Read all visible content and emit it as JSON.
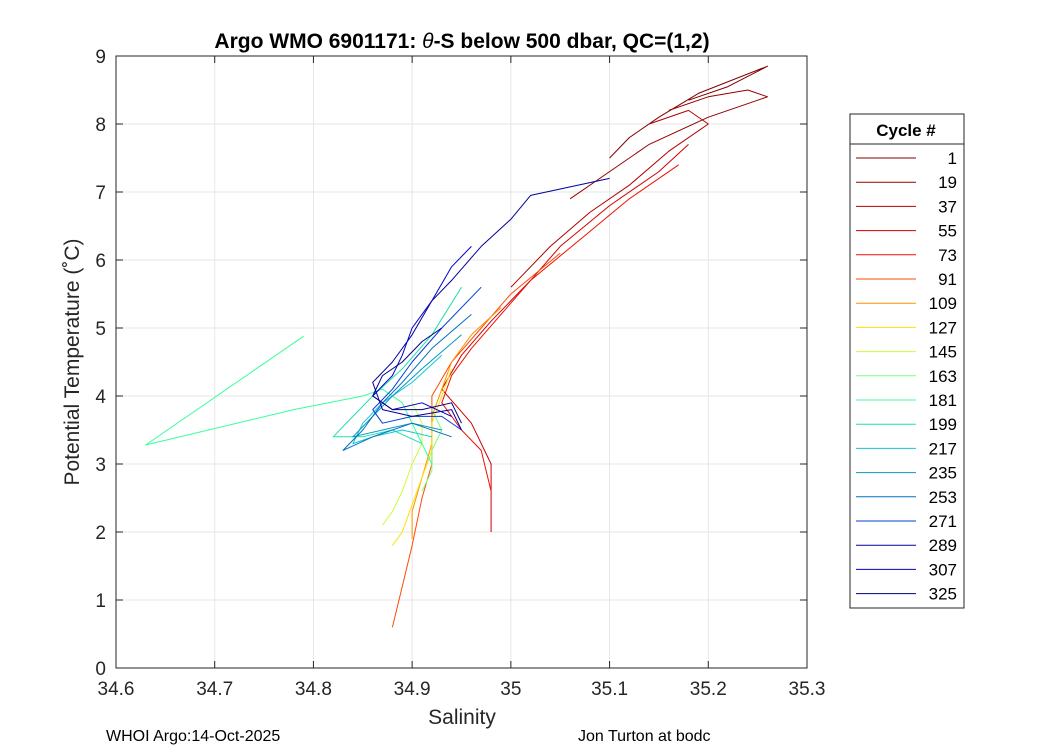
{
  "chart_data": {
    "type": "line",
    "title_prefix": "Argo WMO 6901171: ",
    "title_symbol": "θ",
    "title_suffix": "-S below 500 dbar,  QC=(1,2)",
    "xlabel": "Salinity",
    "ylabel": "Potential Temperature (˚C)",
    "xlim": [
      34.6,
      35.3
    ],
    "ylim": [
      0,
      9
    ],
    "x_ticks": [
      "34.6",
      "34.7",
      "34.8",
      "34.9",
      "35",
      "35.1",
      "35.2",
      "35.3"
    ],
    "y_ticks": [
      "0",
      "1",
      "2",
      "3",
      "4",
      "5",
      "6",
      "7",
      "8",
      "9"
    ],
    "grid": true,
    "legend_title": "Cycle #",
    "legend_position": "right-outside",
    "legend": [
      {
        "label": "1",
        "color": "#800000"
      },
      {
        "label": "19",
        "color": "#960000"
      },
      {
        "label": "37",
        "color": "#b00000"
      },
      {
        "label": "55",
        "color": "#d00000"
      },
      {
        "label": "73",
        "color": "#f01000"
      },
      {
        "label": "91",
        "color": "#ff4a00"
      },
      {
        "label": "109",
        "color": "#ff9200"
      },
      {
        "label": "127",
        "color": "#ffe000"
      },
      {
        "label": "145",
        "color": "#c8ff30"
      },
      {
        "label": "163",
        "color": "#7aff7a"
      },
      {
        "label": "181",
        "color": "#38ff9a"
      },
      {
        "label": "199",
        "color": "#20e0b0"
      },
      {
        "label": "217",
        "color": "#10c8d8"
      },
      {
        "label": "235",
        "color": "#0898c0"
      },
      {
        "label": "253",
        "color": "#0070c0"
      },
      {
        "label": "271",
        "color": "#0040d8"
      },
      {
        "label": "289",
        "color": "#0000a0"
      },
      {
        "label": "307",
        "color": "#0000c8"
      },
      {
        "label": "325",
        "color": "#000080"
      }
    ],
    "series": [
      {
        "name": "1",
        "color": "#800000",
        "points": [
          [
            35.18,
            8.35
          ],
          [
            35.22,
            8.55
          ],
          [
            35.26,
            8.85
          ],
          [
            35.19,
            8.45
          ],
          [
            35.15,
            8.1
          ],
          [
            35.12,
            7.8
          ],
          [
            35.1,
            7.5
          ]
        ]
      },
      {
        "name": "19",
        "color": "#960000",
        "points": [
          [
            35.16,
            8.2
          ],
          [
            35.2,
            8.4
          ],
          [
            35.24,
            8.5
          ],
          [
            35.26,
            8.4
          ],
          [
            35.2,
            8.1
          ],
          [
            35.14,
            7.7
          ],
          [
            35.1,
            7.3
          ],
          [
            35.06,
            6.9
          ]
        ]
      },
      {
        "name": "37",
        "color": "#b00000",
        "points": [
          [
            35.14,
            8.0
          ],
          [
            35.18,
            8.2
          ],
          [
            35.2,
            8.0
          ],
          [
            35.16,
            7.6
          ],
          [
            35.12,
            7.1
          ],
          [
            35.08,
            6.7
          ],
          [
            35.04,
            6.2
          ],
          [
            35.0,
            5.6
          ]
        ]
      },
      {
        "name": "55",
        "color": "#d00000",
        "points": [
          [
            35.18,
            7.7
          ],
          [
            35.15,
            7.3
          ],
          [
            35.1,
            6.8
          ],
          [
            35.05,
            6.2
          ],
          [
            35.02,
            5.7
          ],
          [
            34.98,
            5.1
          ],
          [
            34.95,
            4.6
          ],
          [
            34.93,
            4.1
          ],
          [
            34.96,
            3.6
          ],
          [
            34.98,
            3.0
          ],
          [
            34.98,
            2.0
          ]
        ]
      },
      {
        "name": "73",
        "color": "#f01000",
        "points": [
          [
            35.17,
            7.4
          ],
          [
            35.12,
            6.9
          ],
          [
            35.07,
            6.3
          ],
          [
            35.02,
            5.7
          ],
          [
            34.99,
            5.2
          ],
          [
            34.96,
            4.7
          ],
          [
            34.94,
            4.3
          ],
          [
            34.93,
            3.9
          ],
          [
            34.95,
            3.5
          ],
          [
            34.97,
            3.2
          ],
          [
            34.98,
            2.6
          ]
        ]
      },
      {
        "name": "91",
        "color": "#ff4a00",
        "points": [
          [
            35.05,
            6.1
          ],
          [
            35.0,
            5.5
          ],
          [
            34.97,
            5.0
          ],
          [
            34.94,
            4.5
          ],
          [
            34.92,
            4.0
          ],
          [
            34.92,
            3.5
          ],
          [
            34.92,
            3.0
          ],
          [
            34.91,
            2.5
          ],
          [
            34.9,
            1.8
          ],
          [
            34.89,
            1.2
          ],
          [
            34.88,
            0.6
          ]
        ]
      },
      {
        "name": "109",
        "color": "#ff9200",
        "points": [
          [
            34.99,
            5.3
          ],
          [
            34.96,
            4.9
          ],
          [
            34.94,
            4.5
          ],
          [
            34.93,
            4.1
          ],
          [
            34.92,
            3.7
          ],
          [
            34.92,
            3.3
          ],
          [
            34.91,
            2.8
          ],
          [
            34.9,
            2.3
          ],
          [
            34.9,
            1.9
          ]
        ]
      },
      {
        "name": "127",
        "color": "#ffe000",
        "points": [
          [
            34.94,
            4.4
          ],
          [
            34.93,
            4.0
          ],
          [
            34.92,
            3.6
          ],
          [
            34.92,
            3.2
          ],
          [
            34.91,
            2.8
          ],
          [
            34.9,
            2.4
          ],
          [
            34.89,
            2.0
          ],
          [
            34.88,
            1.8
          ]
        ]
      },
      {
        "name": "145",
        "color": "#c8ff30",
        "points": [
          [
            34.9,
            3.9
          ],
          [
            34.91,
            3.6
          ],
          [
            34.91,
            3.3
          ],
          [
            34.9,
            3.0
          ],
          [
            34.89,
            2.6
          ],
          [
            34.88,
            2.3
          ],
          [
            34.87,
            2.1
          ]
        ]
      },
      {
        "name": "163",
        "color": "#7aff7a",
        "points": [
          [
            34.92,
            3.8
          ],
          [
            34.93,
            3.5
          ],
          [
            34.92,
            3.2
          ],
          [
            34.92,
            2.9
          ],
          [
            34.91,
            2.6
          ]
        ]
      },
      {
        "name": "181",
        "color": "#38ff9a",
        "points": [
          [
            34.79,
            4.88
          ],
          [
            34.63,
            3.28
          ],
          [
            34.78,
            3.8
          ],
          [
            34.85,
            4.0
          ],
          [
            34.87,
            4.1
          ],
          [
            34.89,
            3.9
          ],
          [
            34.9,
            3.6
          ],
          [
            34.91,
            3.3
          ],
          [
            34.92,
            3.0
          ]
        ]
      },
      {
        "name": "199",
        "color": "#20e0b0",
        "points": [
          [
            34.95,
            5.6
          ],
          [
            34.92,
            4.9
          ],
          [
            34.89,
            4.4
          ],
          [
            34.86,
            4.0
          ],
          [
            34.84,
            3.7
          ],
          [
            34.82,
            3.4
          ],
          [
            34.85,
            3.4
          ],
          [
            34.88,
            3.5
          ],
          [
            34.91,
            3.3
          ]
        ]
      },
      {
        "name": "217",
        "color": "#10c8d8",
        "points": [
          [
            34.93,
            4.6
          ],
          [
            34.9,
            4.2
          ],
          [
            34.87,
            3.9
          ],
          [
            34.85,
            3.6
          ],
          [
            34.84,
            3.3
          ],
          [
            34.86,
            3.4
          ],
          [
            34.89,
            3.5
          ],
          [
            34.92,
            3.4
          ]
        ]
      },
      {
        "name": "235",
        "color": "#0898c0",
        "points": [
          [
            34.95,
            4.9
          ],
          [
            34.91,
            4.4
          ],
          [
            34.88,
            4.0
          ],
          [
            34.86,
            3.7
          ],
          [
            34.84,
            3.4
          ],
          [
            34.87,
            3.5
          ],
          [
            34.9,
            3.6
          ],
          [
            34.93,
            3.5
          ]
        ]
      },
      {
        "name": "253",
        "color": "#0070c0",
        "points": [
          [
            34.96,
            5.2
          ],
          [
            34.92,
            4.7
          ],
          [
            34.89,
            4.2
          ],
          [
            34.87,
            3.9
          ],
          [
            34.85,
            3.5
          ],
          [
            34.83,
            3.2
          ],
          [
            34.86,
            3.4
          ],
          [
            34.9,
            3.6
          ],
          [
            34.94,
            3.4
          ]
        ]
      },
      {
        "name": "271",
        "color": "#0040d8",
        "points": [
          [
            34.97,
            5.6
          ],
          [
            34.93,
            5.0
          ],
          [
            34.9,
            4.5
          ],
          [
            34.88,
            4.1
          ],
          [
            34.86,
            3.8
          ],
          [
            34.87,
            3.6
          ],
          [
            34.9,
            3.7
          ],
          [
            34.93,
            3.7
          ],
          [
            34.95,
            3.5
          ]
        ]
      },
      {
        "name": "289",
        "color": "#0000a0",
        "points": [
          [
            35.1,
            7.2
          ],
          [
            35.02,
            6.95
          ],
          [
            35.0,
            6.6
          ],
          [
            34.97,
            6.2
          ],
          [
            34.94,
            5.7
          ],
          [
            34.92,
            5.4
          ],
          [
            34.9,
            4.9
          ],
          [
            34.88,
            4.5
          ],
          [
            34.86,
            4.2
          ],
          [
            34.87,
            3.8
          ],
          [
            34.9,
            3.7
          ],
          [
            34.94,
            3.8
          ],
          [
            34.95,
            3.5
          ]
        ]
      },
      {
        "name": "307",
        "color": "#0000c8",
        "points": [
          [
            34.96,
            6.2
          ],
          [
            34.94,
            5.9
          ],
          [
            34.92,
            5.4
          ],
          [
            34.9,
            5.0
          ],
          [
            34.89,
            4.6
          ],
          [
            34.88,
            4.3
          ],
          [
            34.86,
            4.0
          ],
          [
            34.88,
            3.8
          ],
          [
            34.91,
            3.9
          ],
          [
            34.94,
            3.7
          ]
        ]
      },
      {
        "name": "325",
        "color": "#000080",
        "points": [
          [
            34.93,
            5.0
          ],
          [
            34.91,
            4.8
          ],
          [
            34.89,
            4.5
          ],
          [
            34.87,
            4.3
          ],
          [
            34.86,
            4.0
          ],
          [
            34.88,
            3.8
          ],
          [
            34.91,
            3.8
          ],
          [
            34.94,
            3.9
          ],
          [
            34.95,
            3.6
          ]
        ]
      }
    ]
  },
  "footer": {
    "left": "WHOI Argo:14-Oct-2025",
    "right": "Jon Turton at bodc"
  }
}
